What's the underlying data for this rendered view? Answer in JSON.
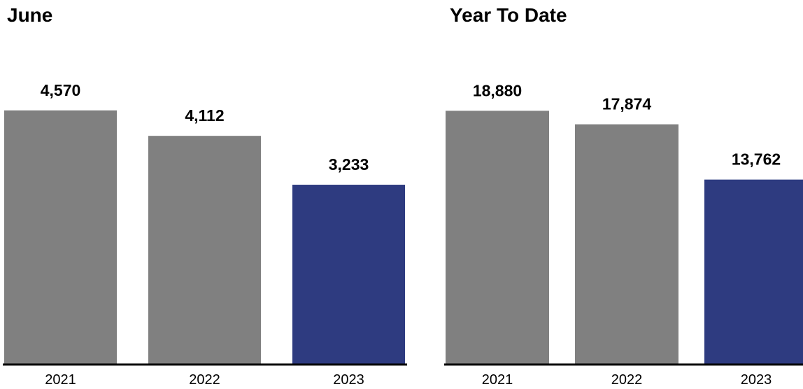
{
  "colors": {
    "previous_years": "#808080",
    "current_year": "#2e3b80",
    "axis": "#000000"
  },
  "chart_data": [
    {
      "type": "bar",
      "title": "June",
      "xlabel": "",
      "ylabel": "",
      "categories": [
        "2021",
        "2022",
        "2023"
      ],
      "values": [
        4570,
        4112,
        3233
      ],
      "value_labels": [
        "4,570",
        "4,112",
        "3,233"
      ],
      "highlight_category": "2023",
      "ylim": [
        0,
        5800
      ],
      "grid": false,
      "legend": "none"
    },
    {
      "type": "bar",
      "title": "Year To Date",
      "xlabel": "",
      "ylabel": "",
      "categories": [
        "2021",
        "2022",
        "2023"
      ],
      "values": [
        18880,
        17874,
        13762
      ],
      "value_labels": [
        "18,880",
        "17,874",
        "13,762"
      ],
      "highlight_category": "2023",
      "ylim": [
        0,
        24000
      ],
      "grid": false,
      "legend": "none"
    }
  ]
}
